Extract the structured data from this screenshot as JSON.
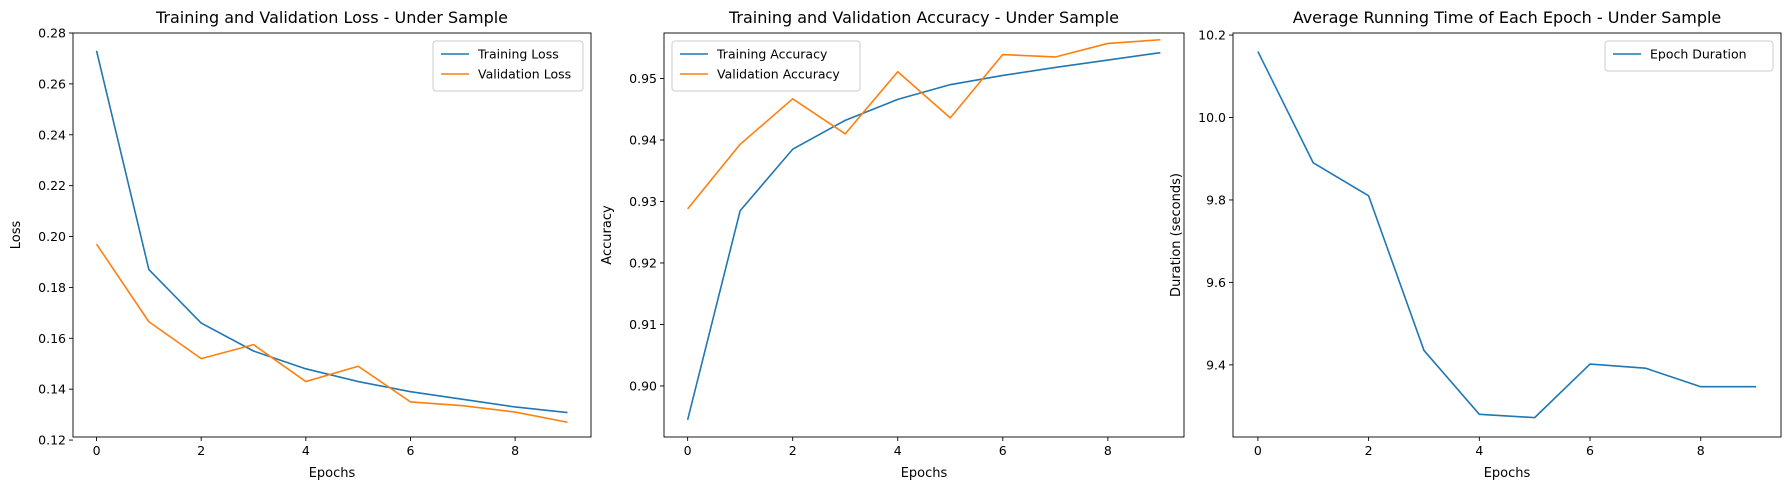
{
  "chart_data": [
    {
      "type": "line",
      "title": "Training and Validation Loss - Under Sample",
      "xlabel": "Epochs",
      "ylabel": "Loss",
      "x": [
        0,
        1,
        2,
        3,
        4,
        5,
        6,
        7,
        8,
        9
      ],
      "xticks": [
        0,
        2,
        4,
        6,
        8
      ],
      "xlim": [
        -0.45,
        9.45
      ],
      "yticks": [
        0.12,
        0.14,
        0.16,
        0.18,
        0.2,
        0.22,
        0.24,
        0.26,
        0.28
      ],
      "ytick_labels": [
        "0.12",
        "0.14",
        "0.16",
        "0.18",
        "0.20",
        "0.22",
        "0.24",
        "0.26",
        "0.28"
      ],
      "ylim": [
        0.1212,
        0.28
      ],
      "legend": "top-right",
      "grid": false,
      "series": [
        {
          "name": "Training Loss",
          "color": "#1f77b4",
          "values": [
            0.273,
            0.187,
            0.166,
            0.155,
            0.148,
            0.143,
            0.139,
            0.136,
            0.133,
            0.1308
          ]
        },
        {
          "name": "Validation Loss",
          "color": "#ff7f0e",
          "values": [
            0.197,
            0.1665,
            0.152,
            0.1575,
            0.143,
            0.149,
            0.135,
            0.1335,
            0.131,
            0.127
          ]
        }
      ]
    },
    {
      "type": "line",
      "title": "Training and Validation Accuracy - Under Sample",
      "xlabel": "Epochs",
      "ylabel": "Accuracy",
      "x": [
        0,
        1,
        2,
        3,
        4,
        5,
        6,
        7,
        8,
        9
      ],
      "xticks": [
        0,
        2,
        4,
        6,
        8
      ],
      "xlim": [
        -0.45,
        9.45
      ],
      "yticks": [
        0.9,
        0.91,
        0.92,
        0.93,
        0.94,
        0.95
      ],
      "ytick_labels": [
        "0.90",
        "0.91",
        "0.92",
        "0.93",
        "0.94",
        "0.95"
      ],
      "ylim": [
        0.8917,
        0.9574
      ],
      "legend": "top-left",
      "grid": false,
      "series": [
        {
          "name": "Training Accuracy",
          "color": "#1f77b4",
          "values": [
            0.8945,
            0.9285,
            0.9385,
            0.9432,
            0.9466,
            0.949,
            0.9505,
            0.9518,
            0.953,
            0.9542
          ]
        },
        {
          "name": "Validation Accuracy",
          "color": "#ff7f0e",
          "values": [
            0.9288,
            0.9393,
            0.9467,
            0.941,
            0.9511,
            0.9436,
            0.9539,
            0.9535,
            0.9557,
            0.9563
          ]
        }
      ]
    },
    {
      "type": "line",
      "title": "Average Running Time of Each Epoch - Under Sample",
      "xlabel": "Epochs",
      "ylabel": "Duration (seconds)",
      "x": [
        0,
        1,
        2,
        3,
        4,
        5,
        6,
        7,
        8,
        9
      ],
      "xticks": [
        0,
        2,
        4,
        6,
        8
      ],
      "xlim": [
        -0.45,
        9.45
      ],
      "yticks": [
        9.4,
        9.6,
        9.8,
        10.0,
        10.2
      ],
      "ytick_labels": [
        "9.4",
        "9.6",
        "9.8",
        "10.0",
        "10.2"
      ],
      "ylim": [
        9.225,
        10.205
      ],
      "legend": "top-right",
      "grid": false,
      "series": [
        {
          "name": "Epoch Duration",
          "color": "#1f77b4",
          "values": [
            10.16,
            9.89,
            9.81,
            9.435,
            9.28,
            9.272,
            9.402,
            9.392,
            9.347,
            9.347
          ]
        }
      ]
    }
  ]
}
